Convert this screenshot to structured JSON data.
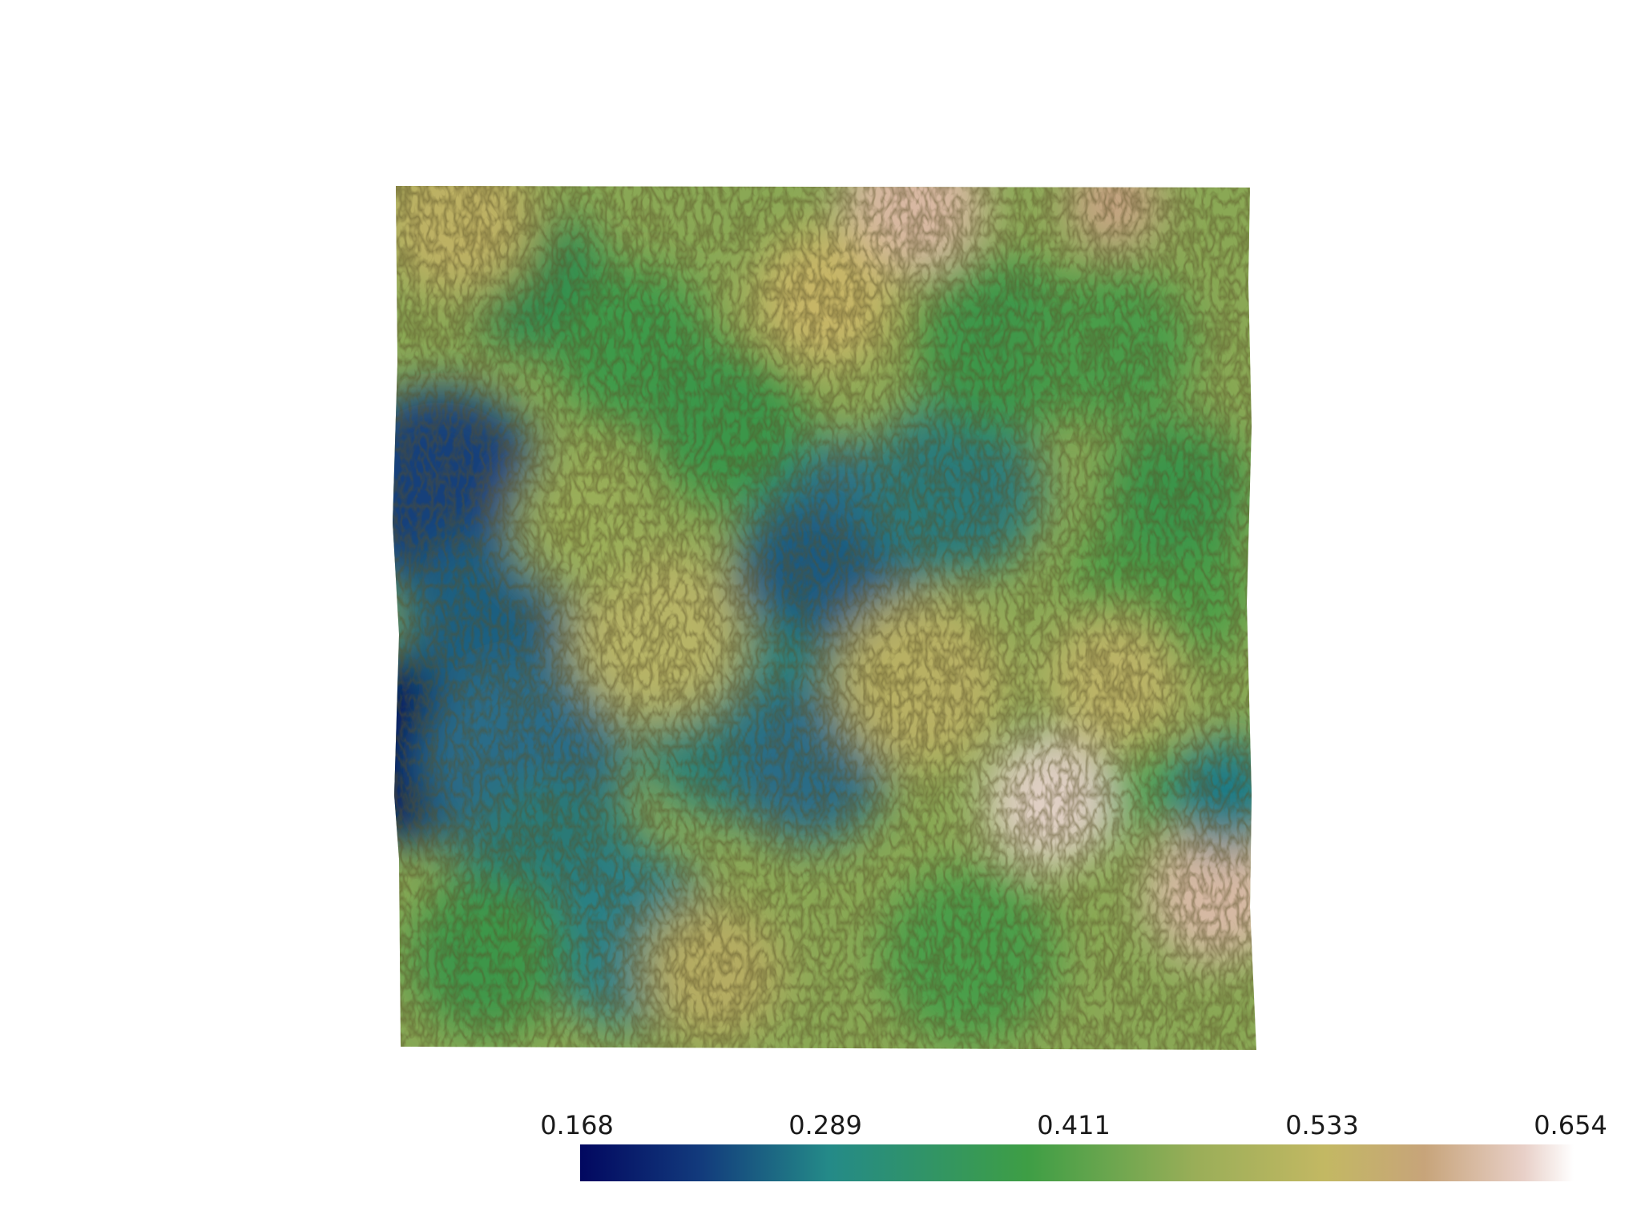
{
  "view": {
    "type": "terrain-elevation-render",
    "background": "#ffffff"
  },
  "colorbar": {
    "tick_labels": [
      "0.168",
      "0.289",
      "0.411",
      "0.533",
      "0.654"
    ],
    "range": [
      0.168,
      0.654
    ],
    "colormap_stops": [
      {
        "t": 0.0,
        "color": "#020860"
      },
      {
        "t": 0.12,
        "color": "#123a7c"
      },
      {
        "t": 0.25,
        "color": "#248a88"
      },
      {
        "t": 0.45,
        "color": "#3e9e45"
      },
      {
        "t": 0.62,
        "color": "#9aae58"
      },
      {
        "t": 0.75,
        "color": "#c3b863"
      },
      {
        "t": 0.85,
        "color": "#c7a47a"
      },
      {
        "t": 0.95,
        "color": "#e8d0c8"
      },
      {
        "t": 1.0,
        "color": "#ffffff"
      }
    ]
  }
}
